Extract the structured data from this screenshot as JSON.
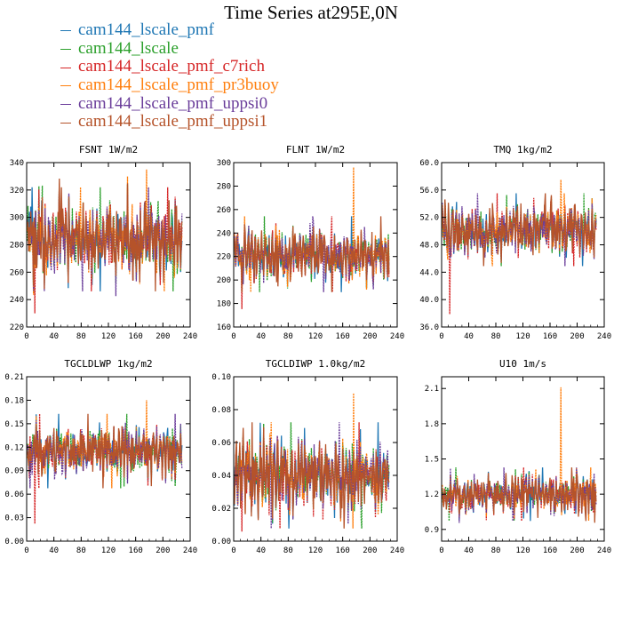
{
  "figure": {
    "title": "Time Series at295E,0N"
  },
  "legend": [
    {
      "name": "cam144_lscale_pmf",
      "color": "#1f77b4"
    },
    {
      "name": "cam144_lscale",
      "color": "#2ca02c"
    },
    {
      "name": "cam144_lscale_pmf_c7rich",
      "color": "#d62728"
    },
    {
      "name": "cam144_lscale_pmf_pr3buoy",
      "color": "#ff7f0e"
    },
    {
      "name": "cam144_lscale_pmf_uppsi0",
      "color": "#6a3d9a"
    },
    {
      "name": "cam144_lscale_pmf_uppsi1",
      "color": "#b5532a"
    }
  ],
  "chart_data": [
    {
      "type": "line",
      "title": "FSNT   1W/m2",
      "xlim": [
        0,
        240
      ],
      "ylim": [
        220,
        340
      ],
      "xticks": [
        0,
        40,
        80,
        120,
        160,
        200,
        240
      ],
      "yticks": [
        220,
        240,
        260,
        280,
        300,
        320,
        340
      ],
      "ytick_labels": [
        "220",
        "240",
        "260",
        "280",
        "300",
        "320",
        "340"
      ],
      "mean": 284,
      "amplitude": 20,
      "spike_max": 335,
      "spike_min": 224,
      "npoints": 228
    },
    {
      "type": "line",
      "title": "FLNT   1W/m2",
      "xlim": [
        0,
        240
      ],
      "ylim": [
        160,
        300
      ],
      "xticks": [
        0,
        40,
        80,
        120,
        160,
        200,
        240
      ],
      "yticks": [
        160,
        180,
        200,
        220,
        240,
        260,
        280,
        300
      ],
      "ytick_labels": [
        "160",
        "180",
        "200",
        "220",
        "240",
        "260",
        "280",
        "300"
      ],
      "mean": 222,
      "amplitude": 17,
      "spike_max": 296,
      "spike_min": 170,
      "npoints": 228
    },
    {
      "type": "line",
      "title": "TMQ   1kg/m2",
      "xlim": [
        0,
        240
      ],
      "ylim": [
        36,
        60
      ],
      "xticks": [
        0,
        40,
        80,
        120,
        160,
        200,
        240
      ],
      "yticks": [
        36,
        40,
        44,
        48,
        52,
        56,
        60
      ],
      "ytick_labels": [
        "36.0",
        "40.0",
        "44.0",
        "48.0",
        "52.0",
        "56.0",
        "60.0"
      ],
      "mean": 50.2,
      "amplitude": 2.8,
      "spike_max": 57.5,
      "spike_min": 36.5,
      "npoints": 228
    },
    {
      "type": "line",
      "title": "TGCLDLWP   1kg/m2",
      "xlim": [
        0,
        240
      ],
      "ylim": [
        0,
        0.21
      ],
      "xticks": [
        0,
        40,
        80,
        120,
        160,
        200,
        240
      ],
      "yticks": [
        0,
        0.03,
        0.06,
        0.09,
        0.12,
        0.15,
        0.18,
        0.21
      ],
      "ytick_labels": [
        "0.00",
        "0.03",
        "0.06",
        "0.09",
        "0.12",
        "0.15",
        "0.18",
        "0.21"
      ],
      "mean": 0.115,
      "amplitude": 0.025,
      "spike_max": 0.18,
      "spike_min": 0.012,
      "npoints": 228
    },
    {
      "type": "line",
      "title": "TGCLDIWP   1.0kg/m2",
      "xlim": [
        0,
        240
      ],
      "ylim": [
        0,
        0.1
      ],
      "xticks": [
        0,
        40,
        80,
        120,
        160,
        200,
        240
      ],
      "yticks": [
        0,
        0.02,
        0.04,
        0.06,
        0.08,
        0.1
      ],
      "ytick_labels": [
        "0.00",
        "0.02",
        "0.04",
        "0.06",
        "0.08",
        "0.10"
      ],
      "mean": 0.04,
      "amplitude": 0.017,
      "spike_max": 0.09,
      "spike_min": 0.002,
      "npoints": 228
    },
    {
      "type": "line",
      "title": "U10   1m/s",
      "xlim": [
        0,
        240
      ],
      "ylim": [
        0.8,
        2.2
      ],
      "xticks": [
        0,
        40,
        80,
        120,
        160,
        200,
        240
      ],
      "yticks": [
        0.9,
        1.2,
        1.5,
        1.8,
        2.1
      ],
      "ytick_labels": [
        "0.9",
        "1.2",
        "1.5",
        "1.8",
        "2.1"
      ],
      "mean": 1.2,
      "amplitude": 0.12,
      "spike_max": 2.11,
      "spike_min": 1.02,
      "npoints": 228
    }
  ]
}
